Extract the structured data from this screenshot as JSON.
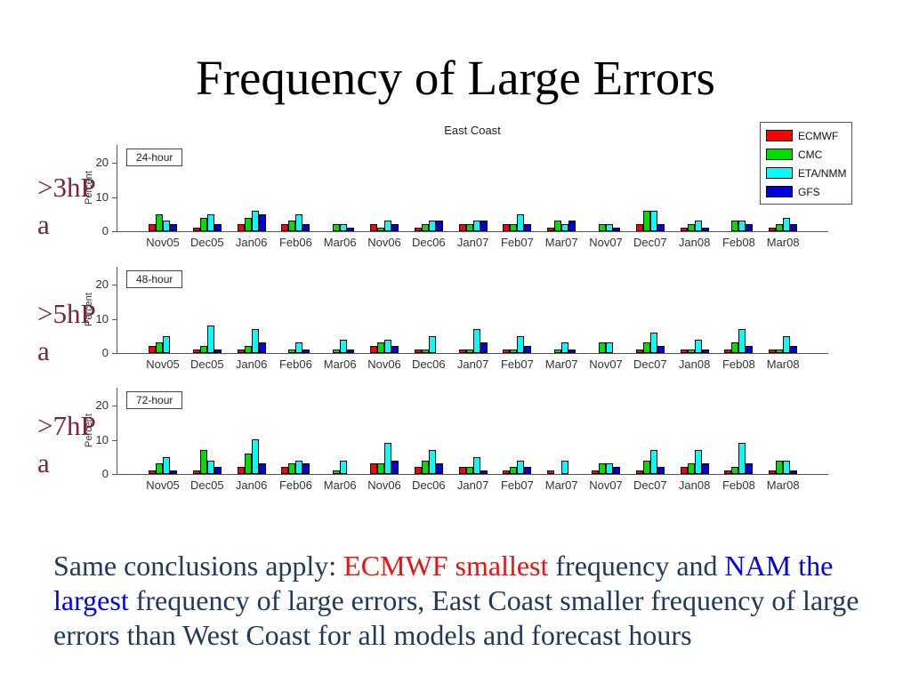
{
  "title": "Frequency of Large Errors",
  "subtitle": "East Coast",
  "legend": {
    "entries": [
      {
        "label": "ECMWF",
        "color": "#FF0000"
      },
      {
        "label": "CMC",
        "color": "#00DD00"
      },
      {
        "label": "ETA/NMM",
        "color": "#00FFFF"
      },
      {
        "label": "GFS",
        "color": "#0000DD"
      }
    ]
  },
  "row_labels": [
    {
      "text": ">3hPa",
      "lines": [
        ">3hP",
        "a"
      ]
    },
    {
      "text": ">5hPa",
      "lines": [
        ">5hP",
        "a"
      ]
    },
    {
      "text": ">7hPa",
      "lines": [
        ">7hP",
        "a"
      ]
    }
  ],
  "chart_data": [
    {
      "type": "bar",
      "title": "24-hour",
      "threshold": ">3hPa",
      "ylabel": "Percent",
      "yticks": [
        0,
        10,
        20
      ],
      "ylim": [
        0,
        25
      ],
      "grid": false,
      "categories": [
        "Nov05",
        "Dec05",
        "Jan06",
        "Feb06",
        "Mar06",
        "Nov06",
        "Dec06",
        "Jan07",
        "Feb07",
        "Mar07",
        "Nov07",
        "Dec07",
        "Jan08",
        "Feb08",
        "Mar08"
      ],
      "series": [
        {
          "name": "ECMWF",
          "color": "#FF0000",
          "values": [
            2,
            1,
            2,
            2,
            0,
            2,
            1,
            2,
            2,
            1,
            0,
            2,
            1,
            0,
            1
          ]
        },
        {
          "name": "CMC",
          "color": "#00DD00",
          "values": [
            5,
            4,
            4,
            3,
            2,
            1,
            2,
            2,
            2,
            3,
            2,
            6,
            2,
            3,
            2
          ]
        },
        {
          "name": "ETA/NMM",
          "color": "#00FFFF",
          "values": [
            3,
            5,
            6,
            5,
            2,
            3,
            3,
            3,
            5,
            2,
            2,
            6,
            3,
            3,
            4
          ]
        },
        {
          "name": "GFS",
          "color": "#0000DD",
          "values": [
            2,
            2,
            5,
            2,
            1,
            2,
            3,
            3,
            2,
            3,
            1,
            2,
            1,
            2,
            2
          ]
        }
      ]
    },
    {
      "type": "bar",
      "title": "48-hour",
      "threshold": ">5hPa",
      "ylabel": "Percent",
      "yticks": [
        0,
        10,
        20
      ],
      "ylim": [
        0,
        25
      ],
      "grid": false,
      "categories": [
        "Nov05",
        "Dec05",
        "Jan06",
        "Feb06",
        "Mar06",
        "Nov06",
        "Dec06",
        "Jan07",
        "Feb07",
        "Mar07",
        "Nov07",
        "Dec07",
        "Jan08",
        "Feb08",
        "Mar08"
      ],
      "series": [
        {
          "name": "ECMWF",
          "color": "#FF0000",
          "values": [
            2,
            1,
            1,
            0,
            0,
            2,
            1,
            1,
            1,
            0,
            0,
            1,
            1,
            1,
            1
          ]
        },
        {
          "name": "CMC",
          "color": "#00DD00",
          "values": [
            3,
            2,
            2,
            1,
            1,
            3,
            1,
            1,
            1,
            1,
            3,
            3,
            1,
            3,
            1
          ]
        },
        {
          "name": "ETA/NMM",
          "color": "#00FFFF",
          "values": [
            5,
            8,
            7,
            3,
            4,
            4,
            5,
            7,
            5,
            3,
            3,
            6,
            4,
            7,
            5
          ]
        },
        {
          "name": "GFS",
          "color": "#0000DD",
          "values": [
            0,
            1,
            3,
            1,
            1,
            2,
            0,
            3,
            2,
            1,
            0,
            2,
            1,
            2,
            2
          ]
        }
      ]
    },
    {
      "type": "bar",
      "title": "72-hour",
      "threshold": ">7hPa",
      "ylabel": "Percent",
      "yticks": [
        0,
        10,
        20
      ],
      "ylim": [
        0,
        25
      ],
      "grid": false,
      "categories": [
        "Nov05",
        "Dec05",
        "Jan06",
        "Feb06",
        "Mar06",
        "Nov06",
        "Dec06",
        "Jan07",
        "Feb07",
        "Mar07",
        "Nov07",
        "Dec07",
        "Jan08",
        "Feb08",
        "Mar08"
      ],
      "series": [
        {
          "name": "ECMWF",
          "color": "#FF0000",
          "values": [
            1,
            1,
            2,
            2,
            0,
            3,
            2,
            2,
            1,
            1,
            1,
            1,
            2,
            1,
            1
          ]
        },
        {
          "name": "CMC",
          "color": "#00DD00",
          "values": [
            3,
            7,
            6,
            3,
            1,
            3,
            4,
            2,
            2,
            0,
            3,
            4,
            3,
            2,
            4
          ]
        },
        {
          "name": "ETA/NMM",
          "color": "#00FFFF",
          "values": [
            5,
            4,
            10,
            4,
            4,
            9,
            7,
            5,
            4,
            4,
            3,
            7,
            7,
            9,
            4
          ]
        },
        {
          "name": "GFS",
          "color": "#0000DD",
          "values": [
            1,
            2,
            3,
            3,
            0,
            4,
            3,
            1,
            2,
            0,
            2,
            2,
            3,
            3,
            1
          ]
        }
      ]
    }
  ],
  "conclusion": {
    "segments": [
      {
        "text": "Same conclusions apply:  ",
        "color": "#22395C"
      },
      {
        "text": "ECMWF smallest",
        "color": "#EE1111"
      },
      {
        "text": " frequency and ",
        "color": "#22395C"
      },
      {
        "text": "NAM the largest",
        "color": "#0000EE"
      },
      {
        "text": " frequency of large errors, East Coast smaller frequency of large errors than West Coast for all models and forecast hours",
        "color": "#22395C"
      }
    ]
  }
}
